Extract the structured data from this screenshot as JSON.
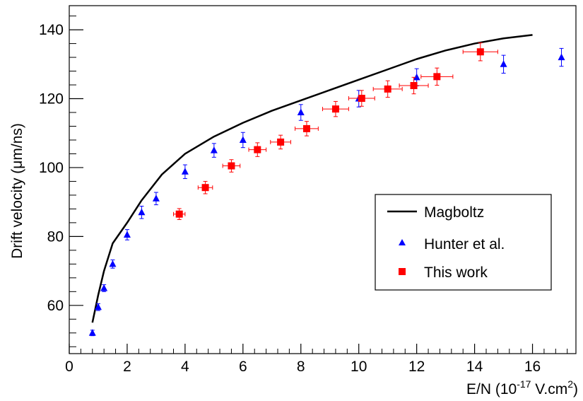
{
  "chart_data": {
    "type": "scatter",
    "xlabel": {
      "main": "E/N (10",
      "sup1": "-17",
      "mid": " V.cm",
      "sup2": "2",
      "end": ")"
    },
    "ylabel": {
      "before": "Drift velocity (",
      "mu": "μ",
      "after": "m/ns)"
    },
    "xlim": [
      0,
      17.5
    ],
    "ylim": [
      46,
      147
    ],
    "xticks": [
      0,
      2,
      4,
      6,
      8,
      10,
      12,
      14,
      16
    ],
    "xtick_labels": [
      "0",
      "2",
      "4",
      "6",
      "8",
      "10",
      "12",
      "14",
      "16"
    ],
    "yticks": [
      60,
      80,
      100,
      120,
      140
    ],
    "ytick_labels": [
      "60",
      "80",
      "100",
      "120",
      "140"
    ],
    "legend_position": "middle-right",
    "series": [
      {
        "name": "Magboltz",
        "kind": "line",
        "color": "#000000",
        "x": [
          0.8,
          1.0,
          1.2,
          1.5,
          2.0,
          2.5,
          3.2,
          4.0,
          5.0,
          6.0,
          7.0,
          8.0,
          9.0,
          10.0,
          11.0,
          12.0,
          13.0,
          14.0,
          15.0,
          16.0
        ],
        "y": [
          55,
          63,
          70,
          78,
          84,
          90.5,
          98,
          104,
          109,
          113,
          116.5,
          119.5,
          122.5,
          125.5,
          128.5,
          131.5,
          134,
          136,
          137.5,
          138.5
        ]
      },
      {
        "name": "Hunter et al.",
        "kind": "triangle",
        "color": "#0000ff",
        "x": [
          0.8,
          1.0,
          1.2,
          1.5,
          2.0,
          2.5,
          3.0,
          4.0,
          5.0,
          6.0,
          8.0,
          10.0,
          12.0,
          15.0,
          17.0
        ],
        "y": [
          52,
          59.5,
          65,
          72,
          80.5,
          87,
          91,
          98.8,
          105,
          108,
          116,
          120,
          126.2,
          130,
          132
        ],
        "err": [
          0.8,
          1.0,
          1.0,
          1.2,
          1.5,
          1.8,
          1.8,
          2.0,
          2.0,
          2.2,
          2.3,
          2.4,
          2.5,
          2.6,
          2.6
        ]
      },
      {
        "name": "This work",
        "kind": "square",
        "color": "#ff0000",
        "x": [
          3.8,
          4.7,
          5.6,
          6.5,
          7.3,
          8.2,
          9.2,
          10.1,
          11.0,
          11.9,
          12.7,
          14.2
        ],
        "y": [
          86.5,
          94.2,
          100.5,
          105.2,
          107.4,
          111.3,
          117,
          120.1,
          122.8,
          123.8,
          126.4,
          133.6
        ],
        "xerr": [
          0.2,
          0.25,
          0.3,
          0.3,
          0.35,
          0.4,
          0.45,
          0.45,
          0.5,
          0.5,
          0.55,
          0.6
        ],
        "yerr": [
          1.6,
          1.8,
          1.8,
          2.0,
          2.0,
          2.1,
          2.2,
          2.3,
          2.4,
          2.4,
          2.5,
          2.6
        ]
      }
    ]
  }
}
